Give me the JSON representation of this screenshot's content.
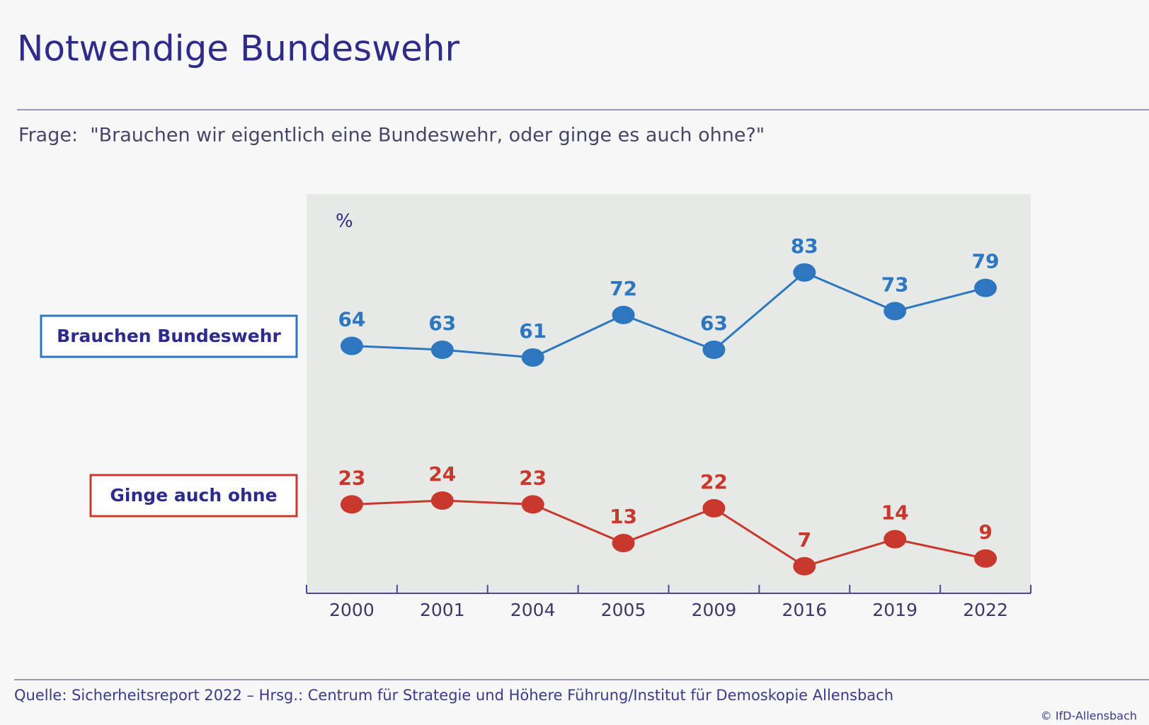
{
  "chart_data": {
    "type": "line",
    "title": "Notwendige Bundeswehr",
    "subtitle": "Frage:  \"Brauchen wir eigentlich eine Bundeswehr, oder ginge es auch ohne?\"",
    "unit": "%",
    "categories": [
      "2000",
      "2001",
      "2004",
      "2005",
      "2009",
      "2016",
      "2019",
      "2022"
    ],
    "series": [
      {
        "name": "Brauchen Bundeswehr",
        "color": "#2c77bf",
        "values": [
          64,
          63,
          61,
          72,
          63,
          83,
          73,
          79
        ]
      },
      {
        "name": "Ginge auch ohne",
        "color": "#c8382c",
        "values": [
          23,
          24,
          23,
          13,
          22,
          7,
          14,
          9
        ]
      }
    ],
    "ylim": [
      0,
      100
    ],
    "source": "Quelle: Sicherheitsreport 2022 – Hrsg.: Centrum für Strategie und Höhere Führung/Institut für Demoskopie Allensbach",
    "copyright": "© IfD-Allensbach"
  }
}
